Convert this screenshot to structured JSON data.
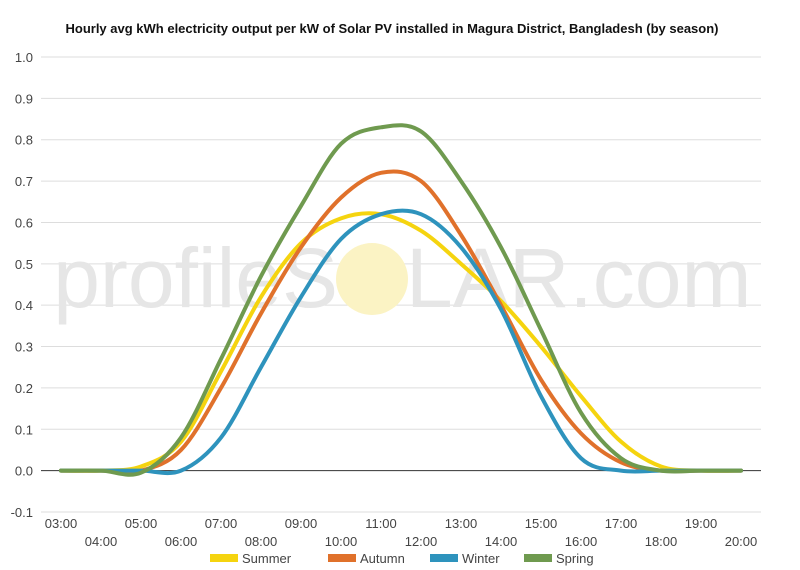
{
  "watermark": {
    "left": "profileS",
    "sun": "O",
    "right": "LAR.com"
  },
  "chart_data": {
    "type": "line",
    "title": "Hourly avg kWh electricity output per kW of Solar PV installed in Magura District, Bangladesh (by season)",
    "xlabel": "",
    "ylabel": "",
    "x": [
      "03:00",
      "04:00",
      "05:00",
      "06:00",
      "07:00",
      "08:00",
      "09:00",
      "10:00",
      "11:00",
      "12:00",
      "13:00",
      "14:00",
      "15:00",
      "16:00",
      "17:00",
      "18:00",
      "19:00",
      "20:00"
    ],
    "ylim": [
      -0.1,
      1.0
    ],
    "yticks": [
      "1.0",
      "0.9",
      "0.8",
      "0.7",
      "0.6",
      "0.5",
      "0.4",
      "0.3",
      "0.2",
      "0.1",
      "0.0",
      "-0.1"
    ],
    "grid": true,
    "legend_position": "bottom",
    "series": [
      {
        "name": "Summer",
        "color": "#f5d40f",
        "values": [
          0,
          0,
          0.01,
          0.07,
          0.24,
          0.42,
          0.55,
          0.61,
          0.62,
          0.58,
          0.5,
          0.41,
          0.3,
          0.18,
          0.07,
          0.01,
          0,
          0
        ]
      },
      {
        "name": "Autumn",
        "color": "#e0712b",
        "values": [
          0,
          0,
          0,
          0.05,
          0.2,
          0.38,
          0.54,
          0.66,
          0.72,
          0.7,
          0.57,
          0.4,
          0.22,
          0.09,
          0.02,
          0,
          0,
          0
        ]
      },
      {
        "name": "Winter",
        "color": "#2e93bd",
        "values": [
          0,
          0,
          0,
          0,
          0.08,
          0.25,
          0.42,
          0.56,
          0.62,
          0.62,
          0.54,
          0.39,
          0.18,
          0.03,
          0,
          0,
          0,
          0
        ]
      },
      {
        "name": "Spring",
        "color": "#6f9a4f",
        "values": [
          0,
          0,
          -0.005,
          0.08,
          0.27,
          0.47,
          0.64,
          0.79,
          0.83,
          0.82,
          0.7,
          0.54,
          0.34,
          0.14,
          0.03,
          0,
          0,
          0
        ]
      }
    ]
  }
}
